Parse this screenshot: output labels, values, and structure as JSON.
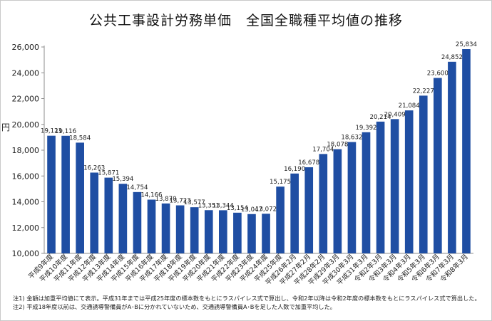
{
  "chart_data": {
    "type": "bar",
    "title": "公共工事設計労務単価　全国全職種平均値の推移",
    "xlabel": "",
    "ylabel": "円",
    "ylim": [
      10000,
      26000
    ],
    "yticks": [
      10000,
      12000,
      14000,
      16000,
      18000,
      20000,
      22000,
      24000,
      26000
    ],
    "ytick_labels": [
      "10,000",
      "12,000",
      "14,000",
      "16,000",
      "18,000",
      "20,000",
      "22,000",
      "24,000",
      "26,000"
    ],
    "grid": false,
    "legend": "none",
    "color": "#1f4ea3",
    "categories": [
      "平成9年度",
      "平成10年度",
      "平成11年度",
      "平成12年度",
      "平成13年度",
      "平成14年度",
      "平成15年度",
      "平成16年度",
      "平成17年度",
      "平成18年度",
      "平成19年度",
      "平成20年度",
      "平成21年度",
      "平成22年度",
      "平成23年度",
      "平成24年度",
      "平成25年度",
      "平成26年2月",
      "平成27年2月",
      "平成28年2月",
      "平成29年3月",
      "平成30年3月",
      "平成31年3月",
      "令和2年3月",
      "令和3年3月",
      "令和4年3月",
      "令和5年3月",
      "令和6年3月",
      "令和7年3月",
      "令和8年3月"
    ],
    "values": [
      19121,
      19116,
      18584,
      16263,
      15871,
      15394,
      14754,
      14166,
      13870,
      13723,
      13577,
      13351,
      13344,
      13154,
      13047,
      13072,
      15175,
      16190,
      16678,
      17704,
      18078,
      18632,
      19392,
      20214,
      20409,
      21084,
      22227,
      23600,
      24852,
      25834
    ],
    "data_labels": [
      "19,121",
      "19,116",
      "18,584",
      "16,263",
      "15,871",
      "15,394",
      "14,754",
      "14,166",
      "13,870",
      "13,723",
      "13,577",
      "13,351",
      "13,344",
      "13,154",
      "13,047",
      "13,072",
      "15,175",
      "16,190",
      "16,678",
      "17,704",
      "18,078",
      "18,632",
      "19,392",
      "20,214",
      "20,409",
      "21,084",
      "22,227",
      "23,600",
      "24,852",
      "25,834"
    ]
  },
  "notes": {
    "note1": "注1) 金額は加重平均値にて表示。平成31年までは平成25年度の標本数をもとにラスパイレス式で算出し、令和2年以降は令和2年度の標本数をもとにラスパイレス式で算出した。",
    "note2": "注2) 平成18年度以前は、交通誘導警備員がA･Bに分かれていないため、交通誘導警備員A･Bを足した人数で加重平均した。"
  }
}
